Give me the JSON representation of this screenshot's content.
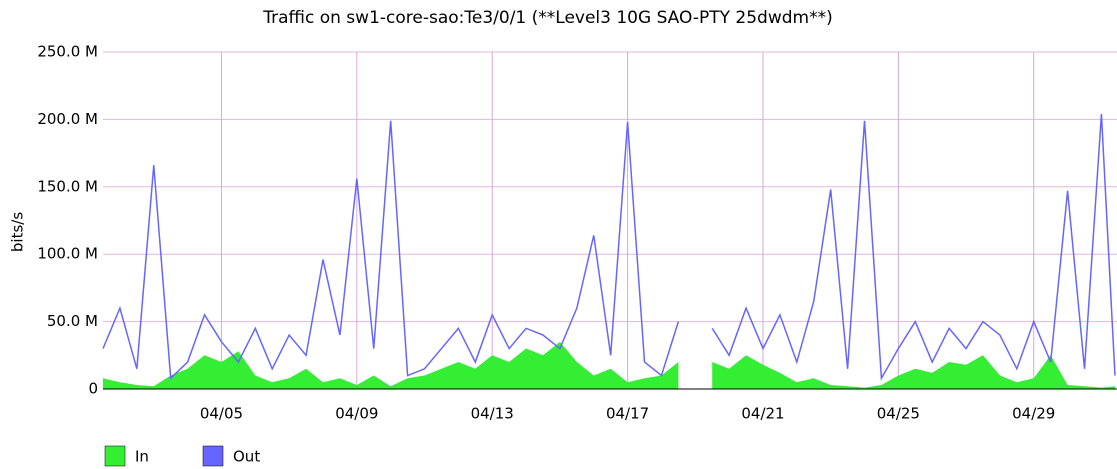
{
  "chart_data": {
    "type": "area-line",
    "title": "Traffic on sw1-core-sao:Te3/0/1 (**Level3 10G SAO-PTY 25dwdm**)",
    "y_label": "bits/s",
    "x": [
      1.5,
      2.0,
      2.5,
      3.0,
      3.5,
      4.0,
      4.5,
      5.0,
      5.5,
      6.0,
      6.5,
      7.0,
      7.5,
      8.0,
      8.5,
      9.0,
      9.5,
      10.0,
      10.5,
      11.0,
      11.5,
      12.0,
      12.5,
      13.0,
      13.5,
      14.0,
      14.5,
      15.0,
      15.5,
      16.0,
      16.5,
      17.0,
      17.5,
      18.0,
      18.5,
      19.0,
      19.5,
      20.0,
      20.5,
      21.0,
      21.5,
      22.0,
      22.5,
      23.0,
      23.5,
      24.0,
      24.5,
      25.0,
      25.5,
      26.0,
      26.5,
      27.0,
      27.5,
      28.0,
      28.5,
      29.0,
      29.5,
      30.0,
      30.5,
      31.0,
      31.4
    ],
    "series": [
      {
        "name": "In",
        "color": "#33ee33",
        "style": "area",
        "values": [
          8000000,
          5000000,
          3000000,
          2000000,
          10000000,
          15000000,
          25000000,
          20000000,
          28000000,
          10000000,
          5000000,
          8000000,
          15000000,
          5000000,
          8000000,
          3000000,
          10000000,
          2000000,
          8000000,
          10000000,
          15000000,
          20000000,
          15000000,
          25000000,
          20000000,
          30000000,
          25000000,
          35000000,
          20000000,
          10000000,
          15000000,
          5000000,
          8000000,
          10000000,
          20000000,
          null,
          20000000,
          15000000,
          25000000,
          18000000,
          12000000,
          5000000,
          8000000,
          3000000,
          2000000,
          1000000,
          3000000,
          10000000,
          15000000,
          12000000,
          20000000,
          18000000,
          25000000,
          10000000,
          5000000,
          8000000,
          25000000,
          3000000,
          2000000,
          1000000,
          2000000
        ]
      },
      {
        "name": "Out",
        "color": "#6666ff",
        "style": "line",
        "values": [
          30000000,
          60000000,
          15000000,
          166000000,
          8000000,
          20000000,
          55000000,
          35000000,
          20000000,
          45000000,
          15000000,
          40000000,
          25000000,
          96000000,
          40000000,
          156000000,
          30000000,
          199000000,
          10000000,
          15000000,
          30000000,
          45000000,
          20000000,
          55000000,
          30000000,
          45000000,
          40000000,
          30000000,
          60000000,
          114000000,
          25000000,
          198000000,
          20000000,
          10000000,
          50000000,
          null,
          45000000,
          25000000,
          60000000,
          30000000,
          55000000,
          20000000,
          65000000,
          148000000,
          15000000,
          199000000,
          8000000,
          30000000,
          50000000,
          20000000,
          45000000,
          30000000,
          50000000,
          40000000,
          15000000,
          50000000,
          20000000,
          147000000,
          15000000,
          204000000,
          10000000
        ]
      }
    ],
    "xlim": [
      1.5,
      31.46
    ],
    "xticks": [
      {
        "value": 5,
        "label": "04/05"
      },
      {
        "value": 9,
        "label": "04/09"
      },
      {
        "value": 13,
        "label": "04/13"
      },
      {
        "value": 17,
        "label": "04/17"
      },
      {
        "value": 21,
        "label": "04/21"
      },
      {
        "value": 25,
        "label": "04/25"
      },
      {
        "value": 29,
        "label": "04/29"
      }
    ],
    "ylim": [
      0,
      250000000
    ],
    "yticks": [
      0,
      {
        "value": 50000000,
        "label": "50.0 M"
      },
      {
        "value": 100000000,
        "label": "100.0 M"
      },
      {
        "value": 150000000,
        "label": "150.0 M"
      },
      {
        "value": 200000000,
        "label": "200.0 M"
      },
      {
        "value": 250000000,
        "label": "250.0 M"
      }
    ],
    "grid": true,
    "legend": "bottom-left"
  }
}
